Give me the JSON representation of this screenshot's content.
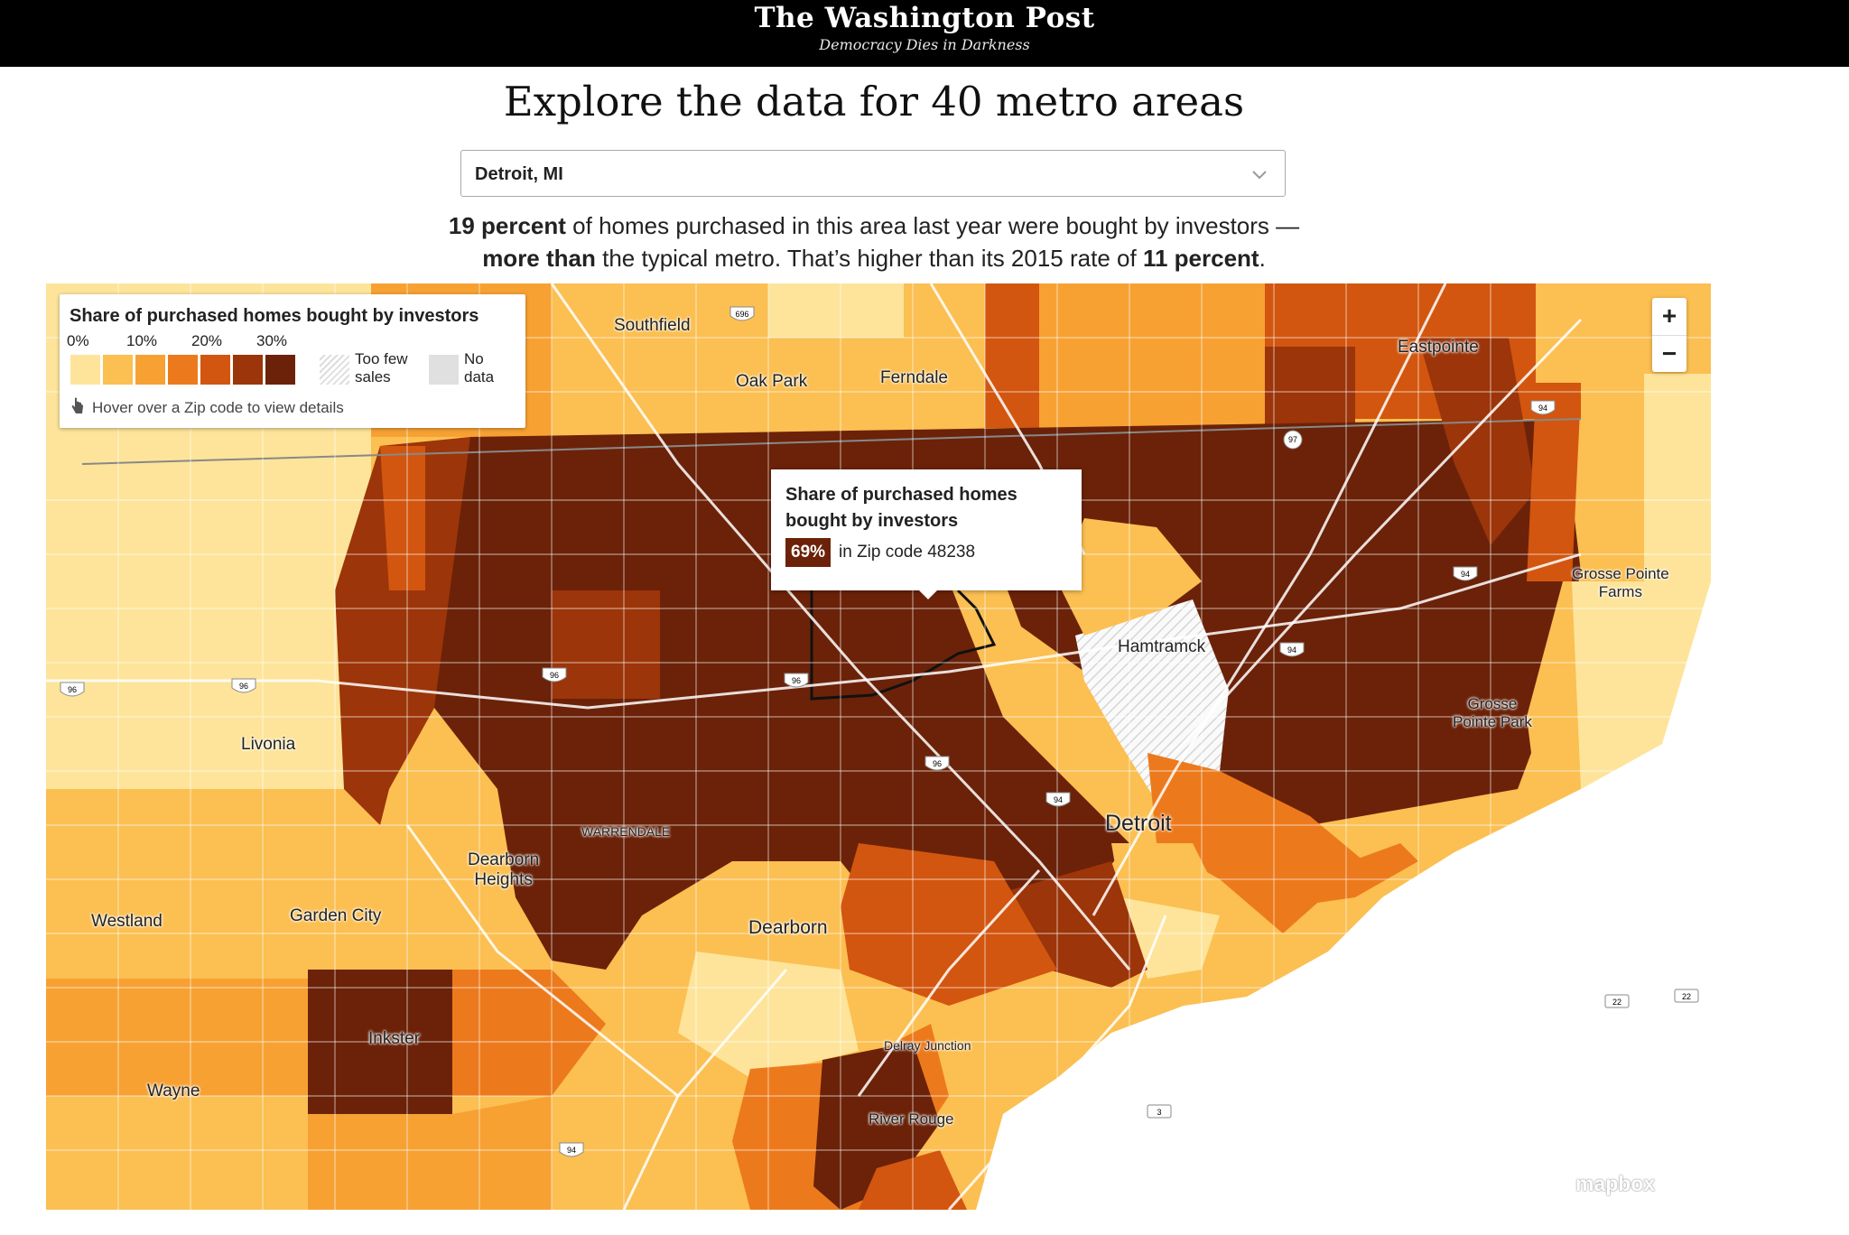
{
  "header": {
    "logo": "The Washington Post",
    "tagline": "Democracy Dies in Darkness"
  },
  "headline": "Explore the data for 40 metro areas",
  "selector": {
    "value": "Detroit, MI",
    "icon": "chevron-down-icon"
  },
  "summary": {
    "pct_current": "19 percent",
    "line1_rest": " of homes purchased in this area last year were bought by investors —",
    "comparison": "more than",
    "line2_mid": " the typical metro. That’s higher than its 2015 rate of ",
    "pct_2015": "11 percent",
    "line2_end": "."
  },
  "legend": {
    "title": "Share of purchased homes bought by investors",
    "ticks": [
      "0%",
      "10%",
      "20%",
      "30%"
    ],
    "colors": [
      "#fde49a",
      "#fbbf52",
      "#f7a133",
      "#ec7a1c",
      "#d2560f",
      "#9c3509",
      "#6b2208"
    ],
    "too_few": "Too few\nsales",
    "no_data": "No\ndata",
    "hint": "Hover over a Zip code to view details",
    "hint_icon": "hand-pointer-icon"
  },
  "zoom": {
    "in": "+",
    "out": "−"
  },
  "tooltip": {
    "title": "Share of purchased homes bought by investors",
    "value": "69%",
    "zip_text": "in Zip code 48238"
  },
  "map": {
    "places": [
      "Southfield",
      "Oak Park",
      "Ferndale",
      "Eastpointe",
      "Hamtramck",
      "Grosse Pointe\nFarms",
      "Grosse\nPointe Park",
      "Livonia",
      "Detroit",
      "WARRENDALE",
      "Dearborn\nHeights",
      "Westland",
      "Garden City",
      "Dearborn",
      "Inkster",
      "Wayne",
      "Delray Junction",
      "River Rouge"
    ],
    "shields": [
      "696",
      "97",
      "94",
      "94",
      "94",
      "94",
      "96",
      "96",
      "96",
      "96",
      "96",
      "94",
      "22",
      "22",
      "3"
    ],
    "attribution": "mapbox"
  }
}
